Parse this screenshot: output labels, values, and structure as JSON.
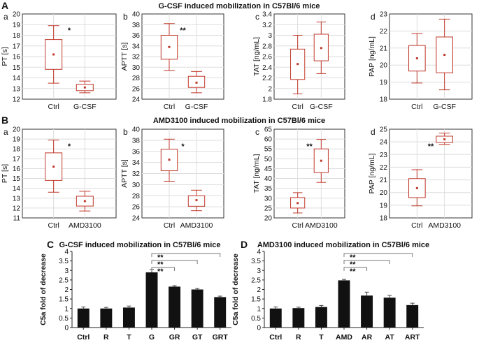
{
  "colors": {
    "box": "#c0392b",
    "bar": "#111111",
    "grid": "#dddddd",
    "bracket": "#777777"
  },
  "panels": {
    "A": {
      "label": "A",
      "title": "G-CSF induced mobilization in C57Bl/6 mice"
    },
    "B": {
      "label": "B",
      "title": "AMD3100 induced mobilization in C57Bl/6 mice"
    },
    "C": {
      "label": "C",
      "title": "G-CSF induced mobilization in C57Bl/6 mice"
    },
    "D": {
      "label": "D",
      "title": "AMD3100 induced mobilization in C57Bl/6 mice"
    }
  },
  "chart_data": [
    {
      "id": "A-a",
      "type": "box",
      "panel": "A",
      "sublabel": "a",
      "ylabel": "PT [s]",
      "ylim": [
        12,
        20
      ],
      "yticks": [
        12,
        13,
        14,
        15,
        16,
        17,
        18,
        19,
        20
      ],
      "significance": "*",
      "categories": [
        "Ctrl",
        "G-CSF"
      ],
      "boxes": [
        {
          "min": 13.5,
          "q1": 14.8,
          "median": 14.8,
          "q3": 17.6,
          "max": 18.9,
          "mean": 16.2
        },
        {
          "min": 12.6,
          "q1": 12.8,
          "median": 12.8,
          "q3": 13.4,
          "max": 13.7,
          "mean": 13.1
        }
      ]
    },
    {
      "id": "A-b",
      "type": "box",
      "panel": "A",
      "sublabel": "b",
      "ylabel": "APTT [s]",
      "ylim": [
        24,
        40
      ],
      "yticks": [
        24,
        26,
        28,
        30,
        32,
        34,
        36,
        38,
        40
      ],
      "significance": "**",
      "categories": [
        "Ctrl",
        "G-CSF"
      ],
      "boxes": [
        {
          "min": 29.4,
          "q1": 31.5,
          "median": 31.5,
          "q3": 36.0,
          "max": 38.2,
          "mean": 33.8
        },
        {
          "min": 25.2,
          "q1": 26.2,
          "median": 26.2,
          "q3": 28.3,
          "max": 29.2,
          "mean": 27.1
        }
      ]
    },
    {
      "id": "A-c",
      "type": "box",
      "panel": "A",
      "sublabel": "c",
      "ylabel": "TAT [ng/mL]",
      "ylim": [
        1.8,
        3.4
      ],
      "yticks": [
        1.8,
        2.0,
        2.2,
        2.4,
        2.6,
        2.8,
        3.0,
        3.2,
        3.4
      ],
      "significance": "",
      "categories": [
        "Ctrl",
        "G-CSF"
      ],
      "boxes": [
        {
          "min": 1.9,
          "q1": 2.17,
          "median": 2.17,
          "q3": 2.74,
          "max": 3.0,
          "mean": 2.46
        },
        {
          "min": 2.28,
          "q1": 2.52,
          "median": 2.52,
          "q3": 3.02,
          "max": 3.25,
          "mean": 2.76
        }
      ]
    },
    {
      "id": "A-d",
      "type": "box",
      "panel": "A",
      "sublabel": "d",
      "ylabel": "PAP [ng/mL]",
      "ylim": [
        18,
        23
      ],
      "yticks": [
        18,
        19,
        20,
        21,
        22,
        23
      ],
      "significance": "",
      "categories": [
        "Ctrl",
        "G-CSF"
      ],
      "boxes": [
        {
          "min": 18.95,
          "q1": 19.65,
          "median": 19.65,
          "q3": 21.15,
          "max": 21.85,
          "mean": 20.4
        },
        {
          "min": 18.55,
          "q1": 19.55,
          "median": 19.55,
          "q3": 21.65,
          "max": 22.7,
          "mean": 20.6
        }
      ]
    },
    {
      "id": "B-a",
      "type": "box",
      "panel": "B",
      "sublabel": "a",
      "ylabel": "PT [s]",
      "ylim": [
        11,
        20
      ],
      "yticks": [
        11,
        12,
        13,
        14,
        15,
        16,
        17,
        18,
        19,
        20
      ],
      "significance": "*",
      "categories": [
        "Ctrl",
        "AMD3100"
      ],
      "boxes": [
        {
          "min": 13.6,
          "q1": 14.8,
          "median": 14.8,
          "q3": 17.6,
          "max": 18.9,
          "mean": 16.2
        },
        {
          "min": 11.7,
          "q1": 12.2,
          "median": 12.2,
          "q3": 13.2,
          "max": 13.7,
          "mean": 12.7
        }
      ]
    },
    {
      "id": "B-b",
      "type": "box",
      "panel": "B",
      "sublabel": "b",
      "ylabel": "APTT [s]",
      "ylim": [
        24,
        40
      ],
      "yticks": [
        24,
        26,
        28,
        30,
        32,
        34,
        36,
        38,
        40
      ],
      "significance": "*",
      "categories": [
        "Ctrl",
        "AMD3100"
      ],
      "boxes": [
        {
          "min": 30.6,
          "q1": 32.5,
          "median": 32.5,
          "q3": 36.4,
          "max": 38.2,
          "mean": 34.5
        },
        {
          "min": 25.3,
          "q1": 26.1,
          "median": 26.1,
          "q3": 28.0,
          "max": 29.0,
          "mean": 27.2
        }
      ]
    },
    {
      "id": "B-c",
      "type": "box",
      "panel": "B",
      "sublabel": "c",
      "ylabel": "TAT [ng/mL]",
      "ylim": [
        20,
        65
      ],
      "yticks": [
        20,
        25,
        30,
        35,
        40,
        45,
        50,
        55,
        60,
        65
      ],
      "significance": "**",
      "categories": [
        "Ctrl",
        "AMD3100"
      ],
      "boxes": [
        {
          "min": 22.5,
          "q1": 25.0,
          "median": 25.0,
          "q3": 30.3,
          "max": 32.8,
          "mean": 27.5
        },
        {
          "min": 38.0,
          "q1": 43.0,
          "median": 43.0,
          "q3": 55.0,
          "max": 59.8,
          "mean": 49.0
        }
      ]
    },
    {
      "id": "B-d",
      "type": "box",
      "panel": "B",
      "sublabel": "d",
      "ylabel": "PAP [ng/mL]",
      "ylim": [
        18,
        25
      ],
      "yticks": [
        18,
        19,
        20,
        21,
        22,
        23,
        24,
        25
      ],
      "significance": "**",
      "categories": [
        "Ctrl",
        "AMD3100"
      ],
      "boxes": [
        {
          "min": 18.95,
          "q1": 19.6,
          "median": 19.6,
          "q3": 21.1,
          "max": 21.8,
          "mean": 20.35
        },
        {
          "min": 23.8,
          "q1": 23.95,
          "median": 23.95,
          "q3": 24.45,
          "max": 24.7,
          "mean": 24.2
        }
      ]
    },
    {
      "id": "C",
      "type": "bar",
      "panel": "C",
      "ylabel": "C5a fold of decrease",
      "ylim": [
        0,
        4
      ],
      "yticks": [
        0,
        0.5,
        1,
        1.5,
        2,
        2.5,
        3,
        3.5,
        4
      ],
      "categories": [
        "Ctrl",
        "R",
        "T",
        "G",
        "GR",
        "GT",
        "GRT"
      ],
      "values": [
        1.0,
        1.0,
        1.05,
        2.9,
        2.15,
        2.0,
        1.6
      ],
      "errors": [
        0.08,
        0.06,
        0.08,
        0.15,
        0.05,
        0.05,
        0.05
      ],
      "brackets": [
        {
          "from": 3,
          "to": 6,
          "label": "**"
        },
        {
          "from": 3,
          "to": 5,
          "label": "**"
        },
        {
          "from": 3,
          "to": 4,
          "label": "**"
        }
      ]
    },
    {
      "id": "D",
      "type": "bar",
      "panel": "D",
      "ylabel": "C5a fold of decrease",
      "ylim": [
        0,
        4
      ],
      "yticks": [
        0,
        0.5,
        1,
        1.5,
        2,
        2.5,
        3,
        3.5,
        4
      ],
      "categories": [
        "Ctrl",
        "R",
        "T",
        "AMD",
        "AR",
        "AT",
        "ART"
      ],
      "values": [
        1.0,
        1.02,
        1.08,
        2.48,
        1.68,
        1.57,
        1.18
      ],
      "errors": [
        0.08,
        0.05,
        0.08,
        0.05,
        0.18,
        0.12,
        0.1
      ],
      "brackets": [
        {
          "from": 3,
          "to": 6,
          "label": "**"
        },
        {
          "from": 3,
          "to": 5,
          "label": "**"
        },
        {
          "from": 3,
          "to": 4,
          "label": "**"
        }
      ]
    }
  ]
}
